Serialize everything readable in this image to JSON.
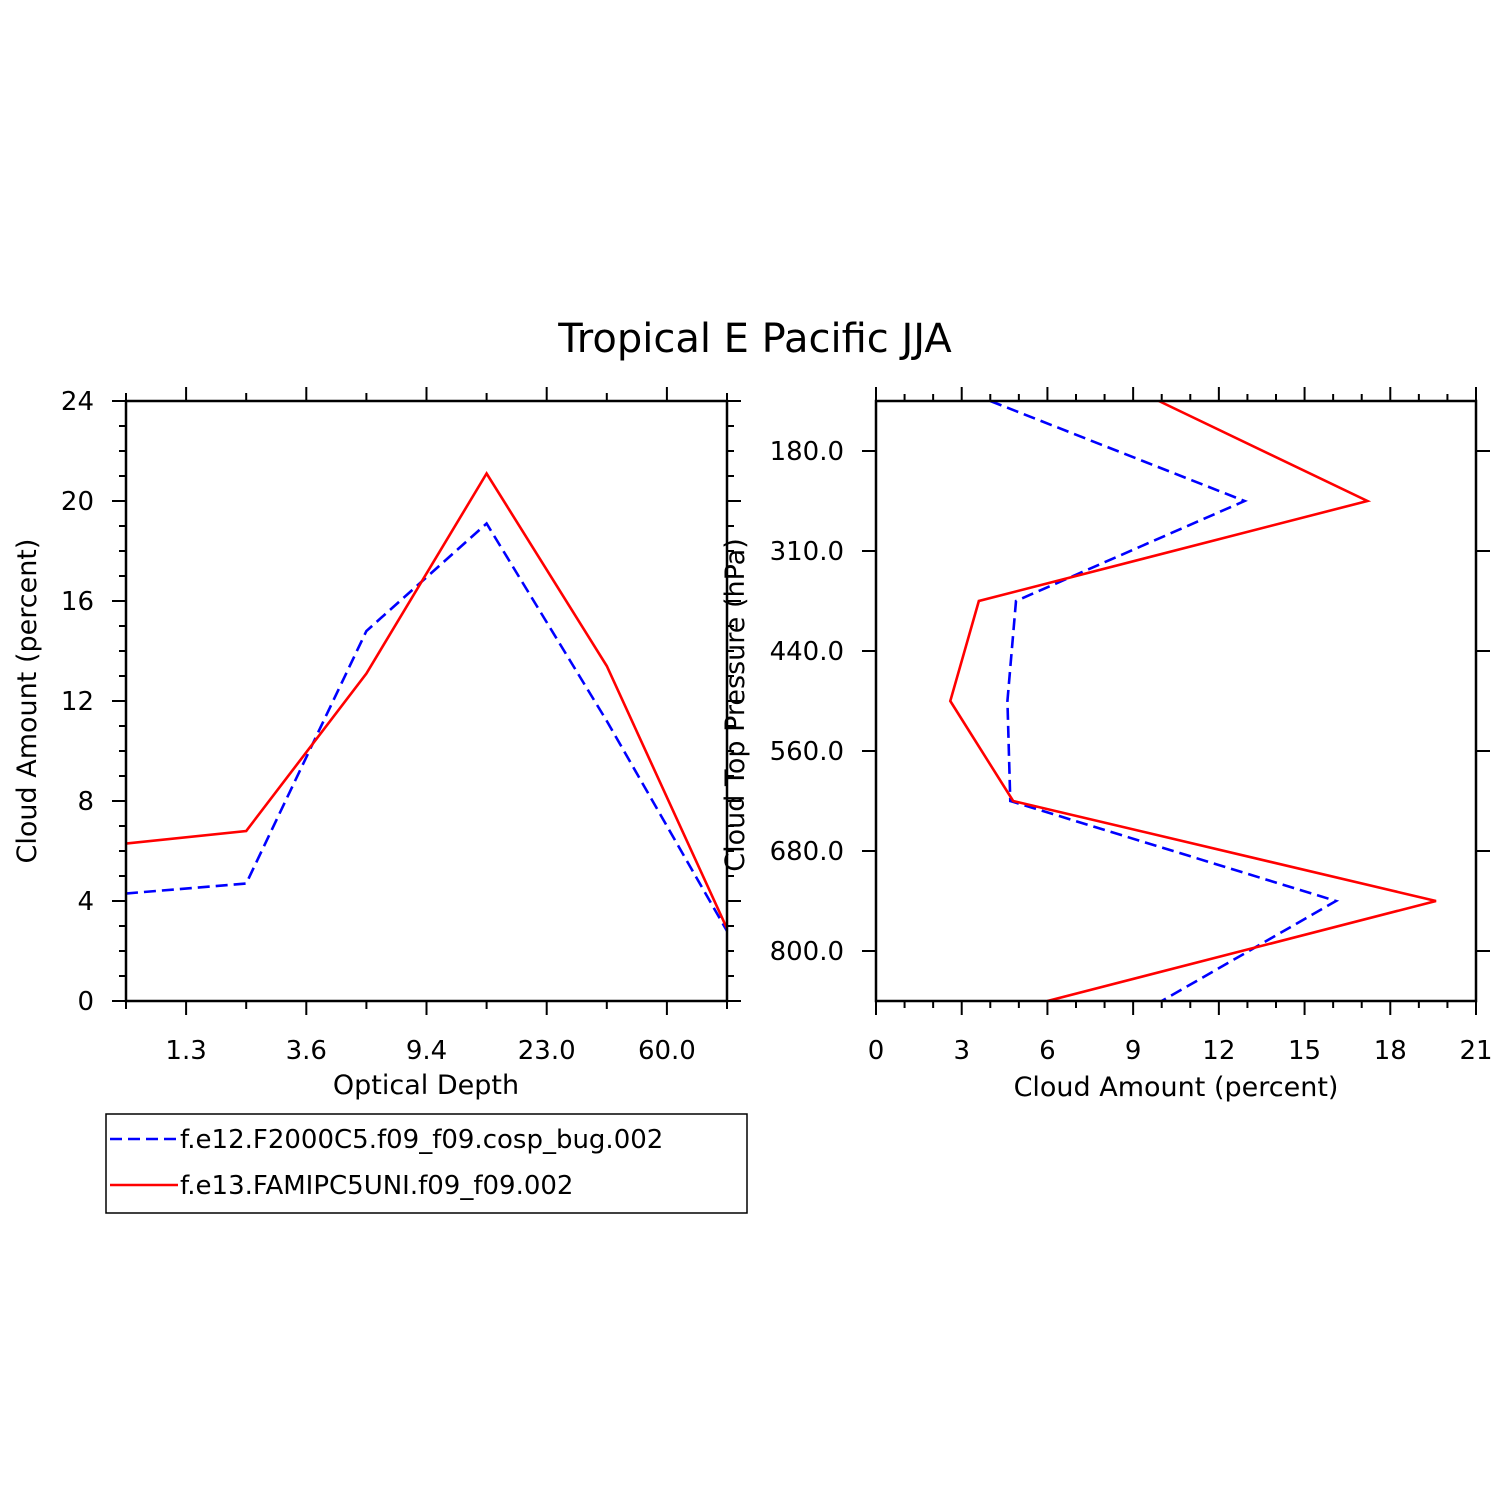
{
  "figure": {
    "title": "Tropical E Pacific JJA"
  },
  "chart_data": [
    {
      "type": "line",
      "panel": "left",
      "x_categories": [
        "",
        "1.3",
        "",
        "3.6",
        "",
        "9.4",
        "",
        "23.0",
        "",
        "60.0",
        ""
      ],
      "xlabel": "Optical Depth",
      "ylabel": "Cloud Amount (percent)",
      "ylim": [
        0,
        24
      ],
      "yticks": [
        0,
        4,
        8,
        12,
        16,
        20,
        24
      ],
      "ytick_labels": [
        "0",
        "4",
        "8",
        "12",
        "16",
        "20",
        "24"
      ],
      "series": [
        {
          "name": "f.e12.F2000C5.f09_f09.cosp_bug.002",
          "color": "#0000ff",
          "style": "dashed",
          "x_index": [
            0,
            2,
            4,
            6,
            8,
            10
          ],
          "values": [
            4.3,
            4.7,
            14.8,
            19.1,
            11.2,
            2.8
          ]
        },
        {
          "name": "f.e13.FAMIPC5UNI.f09_f09.002",
          "color": "#ff0000",
          "style": "solid",
          "x_index": [
            0,
            2,
            4,
            6,
            8,
            10
          ],
          "values": [
            6.3,
            6.8,
            13.1,
            21.1,
            13.4,
            2.9
          ]
        }
      ]
    },
    {
      "type": "line",
      "panel": "right",
      "xlabel": "Cloud Amount (percent)",
      "ylabel": "Cloud Top Pressure (hPa)",
      "xlim": [
        0,
        21
      ],
      "xticks": [
        0,
        3,
        6,
        9,
        12,
        15,
        18,
        21
      ],
      "xtick_labels": [
        "0",
        "3",
        "6",
        "9",
        "12",
        "15",
        "18",
        "21"
      ],
      "y_categories": [
        "",
        "180.0",
        "",
        "310.0",
        "",
        "440.0",
        "",
        "560.0",
        "",
        "680.0",
        "",
        "800.0",
        ""
      ],
      "series": [
        {
          "name": "f.e12.F2000C5.f09_f09.cosp_bug.002",
          "color": "#0000ff",
          "style": "dashed",
          "y_index": [
            0,
            2,
            4,
            6,
            8,
            10,
            12
          ],
          "values": [
            4.0,
            12.9,
            4.9,
            4.6,
            4.7,
            16.1,
            10.0
          ]
        },
        {
          "name": "f.e13.FAMIPC5UNI.f09_f09.002",
          "color": "#ff0000",
          "style": "solid",
          "y_index": [
            0,
            2,
            4,
            6,
            8,
            10,
            12
          ],
          "values": [
            9.9,
            17.2,
            3.6,
            2.6,
            4.8,
            19.6,
            6.0
          ]
        }
      ]
    }
  ],
  "legend": {
    "placement": "bottom-left",
    "entries": [
      {
        "label": "f.e12.F2000C5.f09_f09.cosp_bug.002",
        "color": "#0000ff",
        "style": "dashed"
      },
      {
        "label": "f.e13.FAMIPC5UNI.f09_f09.002",
        "color": "#ff0000",
        "style": "solid"
      }
    ]
  }
}
